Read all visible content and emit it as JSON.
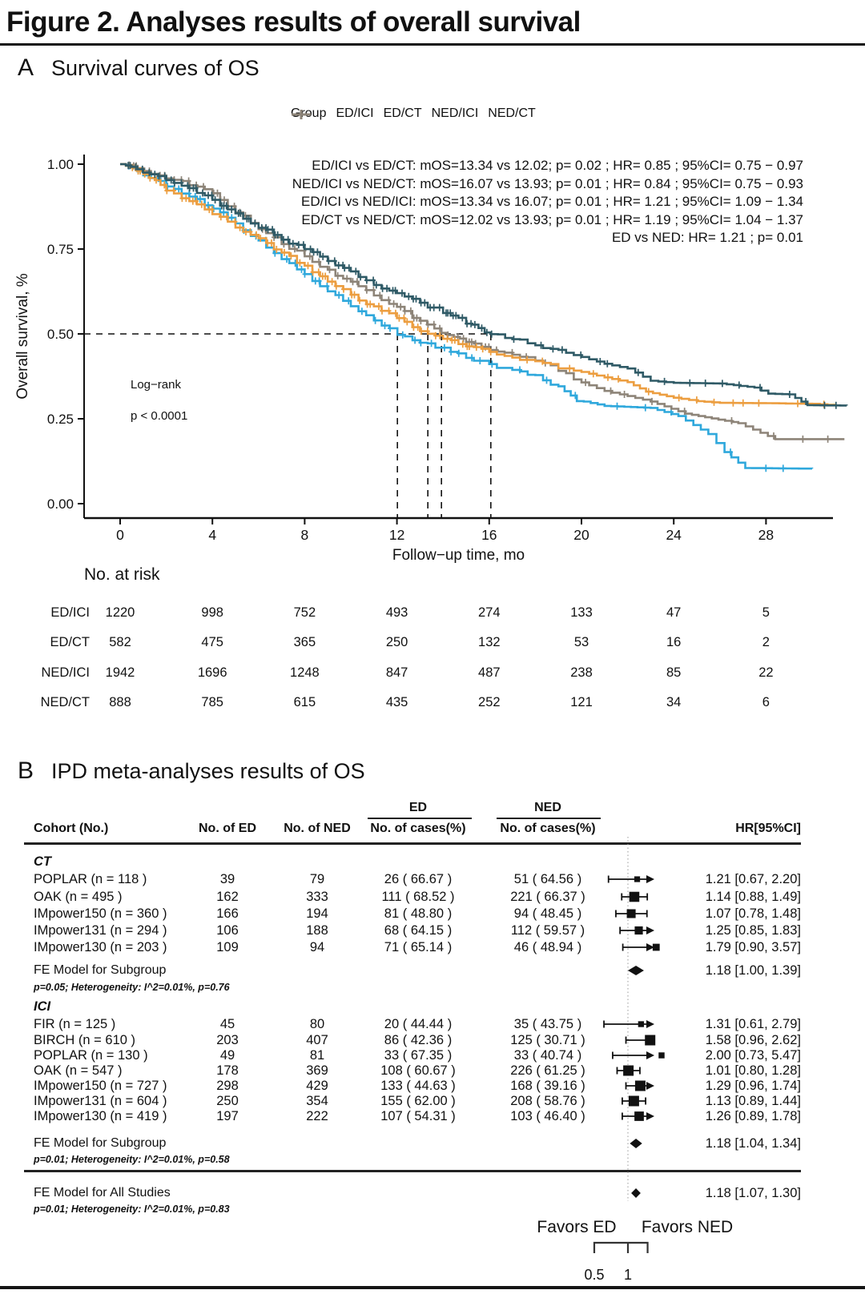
{
  "figure": {
    "title": "Figure 2. Analyses results of overall survival"
  },
  "panel_a": {
    "label": "A",
    "title": "Survival curves of OS",
    "legend": {
      "title": "Group",
      "entries": [
        {
          "label": "ED/ICI",
          "color": "#EC9E40"
        },
        {
          "label": "ED/CT",
          "color": "#2FA8DC"
        },
        {
          "label": "NED/ICI",
          "color": "#2F5A66"
        },
        {
          "label": "NED/CT",
          "color": "#8D8478"
        }
      ]
    }
  },
  "panel_b": {
    "label": "B",
    "title": "IPD meta-analyses results of OS",
    "headers": {
      "cohort": "Cohort (No.)",
      "n_ed": "No. of ED",
      "n_ned": "No. of NED",
      "ed_group": "ED",
      "ned_group": "NED",
      "cases": "No. of cases(%)",
      "hr": "HR[95%CI]"
    }
  },
  "chart_data": [
    {
      "id": "km_os",
      "type": "line",
      "subtype": "kaplan_meier_step",
      "title": "Survival curves of OS",
      "xlabel": "Follow−up time, mo",
      "ylabel": "Overall survival, %",
      "xlim": [
        0,
        31.5
      ],
      "xticks": [
        0,
        4,
        8,
        12,
        16,
        20,
        24,
        28
      ],
      "ylim": [
        0,
        1
      ],
      "ytick_labels": [
        "0.00",
        "0.25",
        "0.50",
        "0.75",
        "1.00"
      ],
      "grid": false,
      "legend_position": "top",
      "reference_survival": 0.5,
      "logrank": "Log−rank",
      "logrank_p": "p < 0.0001",
      "comparisons": [
        "ED/ICI vs ED/CT: mOS=13.34 vs 12.02; p= 0.02 ; HR= 0.85 ; 95%CI= 0.75 − 0.97",
        "NED/ICI vs NED/CT: mOS=16.07 vs 13.93; p= 0.01 ; HR= 0.84 ; 95%CI= 0.75 − 0.93",
        "ED/ICI vs NED/ICI: mOS=13.34 vs 16.07; p= 0.01 ; HR= 1.21 ; 95%CI= 1.09 − 1.34",
        "ED/CT vs NED/CT: mOS=12.02 vs 13.93; p= 0.01 ; HR= 1.19 ; 95%CI= 1.04 − 1.37",
        "ED vs NED: HR= 1.21 ; p= 0.01"
      ],
      "series": [
        {
          "name": "ED/ICI",
          "color": "#EC9E40",
          "median_os": 13.34,
          "censor_density": 1.15,
          "points": [
            [
              0,
              1
            ],
            [
              0.5,
              0.99
            ],
            [
              1,
              0.97
            ],
            [
              1.5,
              0.95
            ],
            [
              2,
              0.925
            ],
            [
              3,
              0.89
            ],
            [
              4,
              0.855
            ],
            [
              5,
              0.815
            ],
            [
              6,
              0.78
            ],
            [
              7,
              0.74
            ],
            [
              8,
              0.7
            ],
            [
              9,
              0.658
            ],
            [
              10,
              0.615
            ],
            [
              11,
              0.578
            ],
            [
              12,
              0.548
            ],
            [
              13,
              0.512
            ],
            [
              13.34,
              0.5
            ],
            [
              14,
              0.488
            ],
            [
              15,
              0.465
            ],
            [
              16,
              0.447
            ],
            [
              17,
              0.432
            ],
            [
              18,
              0.418
            ],
            [
              19,
              0.402
            ],
            [
              20,
              0.388
            ],
            [
              21,
              0.372
            ],
            [
              22,
              0.358
            ],
            [
              22.8,
              0.33
            ],
            [
              24,
              0.312
            ],
            [
              25,
              0.302
            ],
            [
              26,
              0.297
            ],
            [
              28,
              0.296
            ],
            [
              30,
              0.294
            ],
            [
              31,
              0.29
            ]
          ]
        },
        {
          "name": "ED/CT",
          "color": "#2FA8DC",
          "median_os": 12.02,
          "censor_density": 0.75,
          "points": [
            [
              0,
              1
            ],
            [
              0.5,
              0.99
            ],
            [
              1,
              0.968
            ],
            [
              2,
              0.938
            ],
            [
              3,
              0.905
            ],
            [
              4,
              0.872
            ],
            [
              5,
              0.825
            ],
            [
              6,
              0.772
            ],
            [
              7,
              0.722
            ],
            [
              8,
              0.672
            ],
            [
              9,
              0.625
            ],
            [
              10,
              0.583
            ],
            [
              11,
              0.54
            ],
            [
              12.02,
              0.5
            ],
            [
              13,
              0.475
            ],
            [
              14,
              0.458
            ],
            [
              15,
              0.432
            ],
            [
              16,
              0.41
            ],
            [
              17,
              0.392
            ],
            [
              18,
              0.375
            ],
            [
              19,
              0.342
            ],
            [
              19.8,
              0.305
            ],
            [
              21,
              0.288
            ],
            [
              23,
              0.282
            ],
            [
              24.2,
              0.258
            ],
            [
              25.5,
              0.205
            ],
            [
              26.2,
              0.152
            ],
            [
              27.1,
              0.105
            ],
            [
              30,
              0.103
            ]
          ]
        },
        {
          "name": "NED/ICI",
          "color": "#2F5A66",
          "median_os": 16.07,
          "censor_density": 1.45,
          "points": [
            [
              0,
              1
            ],
            [
              0.5,
              0.992
            ],
            [
              1,
              0.978
            ],
            [
              2,
              0.955
            ],
            [
              3,
              0.926
            ],
            [
              4,
              0.895
            ],
            [
              5,
              0.855
            ],
            [
              6,
              0.815
            ],
            [
              7,
              0.78
            ],
            [
              8,
              0.748
            ],
            [
              9,
              0.715
            ],
            [
              10,
              0.682
            ],
            [
              11,
              0.648
            ],
            [
              12,
              0.617
            ],
            [
              13,
              0.59
            ],
            [
              14,
              0.565
            ],
            [
              15,
              0.533
            ],
            [
              16.07,
              0.5
            ],
            [
              17,
              0.486
            ],
            [
              18,
              0.468
            ],
            [
              19,
              0.449
            ],
            [
              20,
              0.432
            ],
            [
              21,
              0.412
            ],
            [
              22,
              0.398
            ],
            [
              23,
              0.362
            ],
            [
              24,
              0.356
            ],
            [
              26,
              0.354
            ],
            [
              27.5,
              0.342
            ],
            [
              28.1,
              0.324
            ],
            [
              29,
              0.322
            ],
            [
              29.8,
              0.29
            ],
            [
              31.5,
              0.289
            ]
          ]
        },
        {
          "name": "NED/CT",
          "color": "#8D8478",
          "median_os": 13.93,
          "censor_density": 0.95,
          "points": [
            [
              0,
              1
            ],
            [
              0.5,
              0.995
            ],
            [
              1,
              0.982
            ],
            [
              2,
              0.962
            ],
            [
              3,
              0.94
            ],
            [
              4,
              0.917
            ],
            [
              5,
              0.862
            ],
            [
              6,
              0.81
            ],
            [
              7,
              0.768
            ],
            [
              8,
              0.728
            ],
            [
              9,
              0.688
            ],
            [
              10,
              0.65
            ],
            [
              11,
              0.612
            ],
            [
              12,
              0.576
            ],
            [
              13,
              0.537
            ],
            [
              13.93,
              0.5
            ],
            [
              15,
              0.476
            ],
            [
              16,
              0.456
            ],
            [
              17,
              0.44
            ],
            [
              18,
              0.426
            ],
            [
              19,
              0.392
            ],
            [
              20,
              0.357
            ],
            [
              21,
              0.332
            ],
            [
              22,
              0.317
            ],
            [
              23,
              0.301
            ],
            [
              24.5,
              0.265
            ],
            [
              26.8,
              0.237
            ],
            [
              28.4,
              0.19
            ],
            [
              31.4,
              0.19
            ]
          ]
        }
      ],
      "risk_table": {
        "title": "No. at risk",
        "times": [
          0,
          4,
          8,
          12,
          16,
          20,
          24,
          28
        ],
        "rows": [
          {
            "group": "ED/ICI",
            "counts": [
              1220,
              998,
              752,
              493,
              274,
              133,
              47,
              5
            ]
          },
          {
            "group": "ED/CT",
            "counts": [
              582,
              475,
              365,
              250,
              132,
              53,
              16,
              2
            ]
          },
          {
            "group": "NED/ICI",
            "counts": [
              1942,
              1696,
              1248,
              847,
              487,
              238,
              85,
              22
            ]
          },
          {
            "group": "NED/CT",
            "counts": [
              888,
              785,
              615,
              435,
              252,
              121,
              34,
              6
            ]
          }
        ]
      }
    },
    {
      "id": "forest_os",
      "type": "forest",
      "ref_line": 1,
      "axis_range": [
        0.5,
        1.5
      ],
      "scale_ticks": [
        "0.5",
        "1"
      ],
      "favors_left": "Favors ED",
      "favors_right": "Favors NED",
      "subgroups": [
        {
          "name": "CT",
          "studies": [
            {
              "cohort": "POPLAR (n = 118 )",
              "n": 118,
              "n_ed": "39",
              "n_ned": "79",
              "ed_cases": "26 ( 66.67 )",
              "ned_cases": "51 ( 64.56 )",
              "hr": 1.21,
              "ci": [
                0.67,
                2.2
              ],
              "hr_label": "1.21 [0.67, 2.20]"
            },
            {
              "cohort": "OAK (n = 495 )",
              "n": 495,
              "n_ed": "162",
              "n_ned": "333",
              "ed_cases": "111 ( 68.52 )",
              "ned_cases": "221 ( 66.37 )",
              "hr": 1.14,
              "ci": [
                0.88,
                1.49
              ],
              "hr_label": "1.14 [0.88, 1.49]"
            },
            {
              "cohort": "IMpower150 (n = 360 )",
              "n": 360,
              "n_ed": "166",
              "n_ned": "194",
              "ed_cases": "81 ( 48.80 )",
              "ned_cases": "94 ( 48.45 )",
              "hr": 1.07,
              "ci": [
                0.78,
                1.48
              ],
              "hr_label": "1.07 [0.78, 1.48]"
            },
            {
              "cohort": "IMpower131 (n = 294 )",
              "n": 294,
              "n_ed": "106",
              "n_ned": "188",
              "ed_cases": "68 ( 64.15 )",
              "ned_cases": "112 ( 59.57 )",
              "hr": 1.25,
              "ci": [
                0.85,
                1.83
              ],
              "hr_label": "1.25 [0.85, 1.83]"
            },
            {
              "cohort": "IMpower130 (n = 203 )",
              "n": 203,
              "n_ed": "109",
              "n_ned": "94",
              "ed_cases": "71 ( 65.14 )",
              "ned_cases": "46 ( 48.94 )",
              "hr": 1.79,
              "ci": [
                0.9,
                3.57
              ],
              "hr_label": "1.79 [0.90, 3.57]"
            }
          ],
          "fe_model": {
            "label": "FE Model for Subgroup",
            "stats": "p=0.05; Heterogeneity: I^2=0.01%, p=0.76",
            "hr": 1.18,
            "ci": [
              1.0,
              1.39
            ],
            "hr_label": "1.18 [1.00, 1.39]"
          }
        },
        {
          "name": "ICI",
          "studies": [
            {
              "cohort": "FIR (n = 125 )",
              "n": 125,
              "n_ed": "45",
              "n_ned": "80",
              "ed_cases": "20 ( 44.44 )",
              "ned_cases": "35 ( 43.75 )",
              "hr": 1.31,
              "ci": [
                0.61,
                2.79
              ],
              "hr_label": "1.31 [0.61, 2.79]"
            },
            {
              "cohort": "BIRCH (n = 610 )",
              "n": 610,
              "n_ed": "203",
              "n_ned": "407",
              "ed_cases": "86 ( 42.36 )",
              "ned_cases": "125 ( 30.71 )",
              "hr": 1.58,
              "ci": [
                0.96,
                2.62
              ],
              "hr_label": "1.58 [0.96, 2.62]"
            },
            {
              "cohort": "POPLAR (n = 130 )",
              "n": 130,
              "n_ed": "49",
              "n_ned": "81",
              "ed_cases": "33 ( 67.35 )",
              "ned_cases": "33 ( 40.74 )",
              "hr": 2.0,
              "ci": [
                0.73,
                5.47
              ],
              "hr_label": "2.00 [0.73, 5.47]"
            },
            {
              "cohort": "OAK (n = 547 )",
              "n": 547,
              "n_ed": "178",
              "n_ned": "369",
              "ed_cases": "108 ( 60.67 )",
              "ned_cases": "226 ( 61.25 )",
              "hr": 1.01,
              "ci": [
                0.8,
                1.28
              ],
              "hr_label": "1.01 [0.80, 1.28]"
            },
            {
              "cohort": "IMpower150 (n = 727 )",
              "n": 727,
              "n_ed": "298",
              "n_ned": "429",
              "ed_cases": "133 ( 44.63 )",
              "ned_cases": "168 ( 39.16 )",
              "hr": 1.29,
              "ci": [
                0.96,
                1.74
              ],
              "hr_label": "1.29 [0.96, 1.74]"
            },
            {
              "cohort": "IMpower131 (n = 604 )",
              "n": 604,
              "n_ed": "250",
              "n_ned": "354",
              "ed_cases": "155 ( 62.00 )",
              "ned_cases": "208 ( 58.76 )",
              "hr": 1.13,
              "ci": [
                0.89,
                1.44
              ],
              "hr_label": "1.13 [0.89, 1.44]"
            },
            {
              "cohort": "IMpower130 (n = 419 )",
              "n": 419,
              "n_ed": "197",
              "n_ned": "222",
              "ed_cases": "107 ( 54.31 )",
              "ned_cases": "103 ( 46.40 )",
              "hr": 1.26,
              "ci": [
                0.89,
                1.78
              ],
              "hr_label": "1.26 [0.89, 1.78]"
            }
          ],
          "fe_model": {
            "label": "FE Model for Subgroup",
            "stats": "p=0.01; Heterogeneity: I^2=0.01%, p=0.58",
            "hr": 1.18,
            "ci": [
              1.04,
              1.34
            ],
            "hr_label": "1.18 [1.04, 1.34]"
          }
        }
      ],
      "overall": {
        "label": "FE Model for All Studies",
        "stats": "p=0.01; Heterogeneity: I^2=0.01%, p=0.83",
        "hr": 1.18,
        "ci": [
          1.07,
          1.3
        ],
        "hr_label": "1.18 [1.07, 1.30]"
      }
    }
  ]
}
